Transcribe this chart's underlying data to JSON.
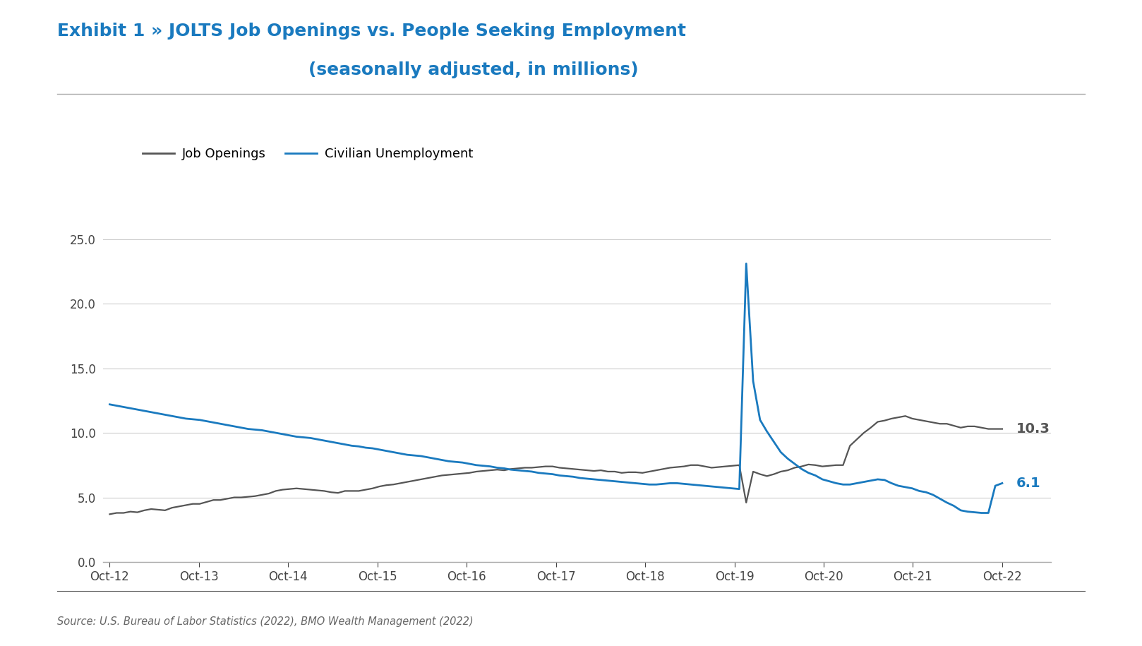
{
  "title_line1": "Exhibit 1 » JOLTS Job Openings vs. People Seeking Employment",
  "title_line2": "(seasonally adjusted, in millions)",
  "title_color": "#1a7abf",
  "source_text": "Source: U.S. Bureau of Labor Statistics (2022), BMO Wealth Management (2022)",
  "legend_labels": [
    "Job Openings",
    "Civilian Unemployment"
  ],
  "job_openings_color": "#555555",
  "unemployment_color": "#1a7abf",
  "end_label_jo": "10.3",
  "end_label_ue": "6.1",
  "background_color": "#ffffff",
  "yticks": [
    0.0,
    5.0,
    10.0,
    15.0,
    20.0,
    25.0
  ],
  "xtick_labels": [
    "Oct-12",
    "Oct-13",
    "Oct-14",
    "Oct-15",
    "Oct-16",
    "Oct-17",
    "Oct-18",
    "Oct-19",
    "Oct-20",
    "Oct-21",
    "Oct-22"
  ],
  "job_openings": [
    3.7,
    3.8,
    3.8,
    3.9,
    3.85,
    4.0,
    4.1,
    4.05,
    4.0,
    4.2,
    4.3,
    4.4,
    4.5,
    4.5,
    4.65,
    4.8,
    4.8,
    4.9,
    5.0,
    5.0,
    5.05,
    5.1,
    5.2,
    5.3,
    5.5,
    5.6,
    5.65,
    5.7,
    5.65,
    5.6,
    5.55,
    5.5,
    5.4,
    5.35,
    5.5,
    5.5,
    5.5,
    5.6,
    5.7,
    5.85,
    5.95,
    6.0,
    6.1,
    6.2,
    6.3,
    6.4,
    6.5,
    6.6,
    6.7,
    6.75,
    6.8,
    6.85,
    6.9,
    7.0,
    7.05,
    7.1,
    7.15,
    7.1,
    7.2,
    7.25,
    7.3,
    7.3,
    7.35,
    7.4,
    7.4,
    7.3,
    7.25,
    7.2,
    7.15,
    7.1,
    7.05,
    7.1,
    7.0,
    7.0,
    6.9,
    6.95,
    6.95,
    6.9,
    7.0,
    7.1,
    7.2,
    7.3,
    7.35,
    7.4,
    7.5,
    7.5,
    7.4,
    7.3,
    7.35,
    7.4,
    7.45,
    7.5,
    4.6,
    7.0,
    6.8,
    6.65,
    6.8,
    7.0,
    7.1,
    7.3,
    7.4,
    7.55,
    7.5,
    7.4,
    7.45,
    7.5,
    7.5,
    9.0,
    9.5,
    10.0,
    10.4,
    10.85,
    10.95,
    11.1,
    11.2,
    11.3,
    11.1,
    11.0,
    10.9,
    10.8,
    10.7,
    10.7,
    10.55,
    10.4,
    10.5,
    10.5,
    10.4,
    10.3,
    10.3,
    10.3
  ],
  "civilian_unemployment": [
    12.2,
    12.1,
    12.0,
    11.9,
    11.8,
    11.7,
    11.6,
    11.5,
    11.4,
    11.3,
    11.2,
    11.1,
    11.05,
    11.0,
    10.9,
    10.8,
    10.7,
    10.6,
    10.5,
    10.4,
    10.3,
    10.25,
    10.2,
    10.1,
    10.0,
    9.9,
    9.8,
    9.7,
    9.65,
    9.6,
    9.5,
    9.4,
    9.3,
    9.2,
    9.1,
    9.0,
    8.95,
    8.85,
    8.8,
    8.7,
    8.6,
    8.5,
    8.4,
    8.3,
    8.25,
    8.2,
    8.1,
    8.0,
    7.9,
    7.8,
    7.75,
    7.7,
    7.6,
    7.5,
    7.45,
    7.4,
    7.3,
    7.25,
    7.15,
    7.1,
    7.05,
    7.0,
    6.9,
    6.85,
    6.8,
    6.7,
    6.65,
    6.6,
    6.5,
    6.45,
    6.4,
    6.35,
    6.3,
    6.25,
    6.2,
    6.15,
    6.1,
    6.05,
    6.0,
    6.0,
    6.05,
    6.1,
    6.1,
    6.05,
    6.0,
    5.95,
    5.9,
    5.85,
    5.8,
    5.75,
    5.7,
    5.65,
    23.1,
    14.0,
    11.0,
    10.1,
    9.3,
    8.5,
    8.0,
    7.6,
    7.2,
    6.9,
    6.7,
    6.4,
    6.25,
    6.1,
    6.0,
    6.0,
    6.1,
    6.2,
    6.3,
    6.4,
    6.35,
    6.1,
    5.9,
    5.8,
    5.7,
    5.5,
    5.4,
    5.2,
    4.9,
    4.6,
    4.35,
    4.0,
    3.9,
    3.85,
    3.8,
    3.8,
    5.9,
    6.1
  ]
}
